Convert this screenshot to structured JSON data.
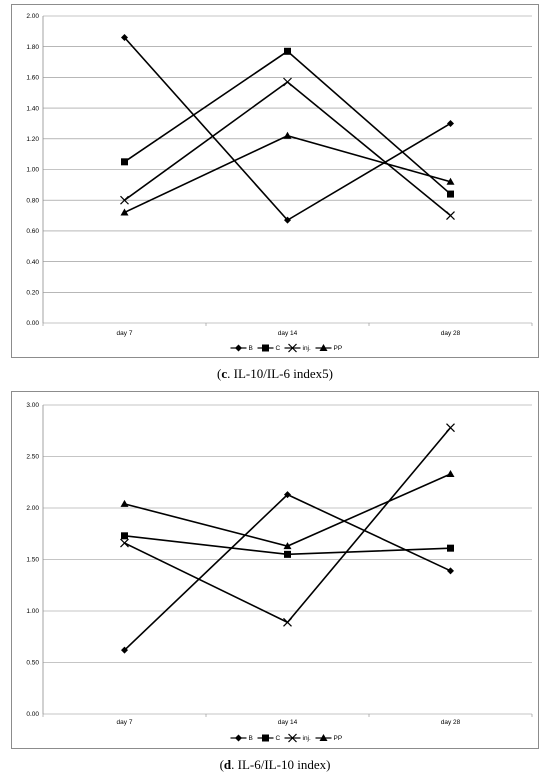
{
  "chart_data": [
    {
      "type": "line",
      "categories": [
        "day 7",
        "day 14",
        "day 28"
      ],
      "ylim": [
        0,
        2.0
      ],
      "ytick_labels": [
        "0.00",
        "0.20",
        "0.40",
        "0.60",
        "0.80",
        "1.00",
        "1.20",
        "1.40",
        "1.60",
        "1.80",
        "2.00"
      ],
      "grid": true,
      "legend_position": "bottom",
      "series": [
        {
          "name": "B",
          "marker": "diamond",
          "values": [
            1.86,
            0.67,
            1.3
          ]
        },
        {
          "name": "C",
          "marker": "square",
          "values": [
            1.05,
            1.77,
            0.84
          ]
        },
        {
          "name": "inj.",
          "marker": "x",
          "values": [
            0.8,
            1.57,
            0.7
          ]
        },
        {
          "name": "PP",
          "marker": "triangle",
          "values": [
            0.72,
            1.22,
            0.92
          ]
        }
      ]
    },
    {
      "type": "line",
      "categories": [
        "day 7",
        "day 14",
        "day 28"
      ],
      "ylim": [
        0,
        3.0
      ],
      "ytick_labels": [
        "0.00",
        "0.50",
        "1.00",
        "1.50",
        "2.00",
        "2.50",
        "3.00"
      ],
      "grid": true,
      "legend_position": "bottom",
      "series": [
        {
          "name": "B",
          "marker": "diamond",
          "values": [
            0.62,
            2.13,
            1.39
          ]
        },
        {
          "name": "C",
          "marker": "square",
          "values": [
            1.73,
            1.55,
            1.61
          ]
        },
        {
          "name": "inj.",
          "marker": "x",
          "values": [
            1.66,
            0.89,
            2.78
          ]
        },
        {
          "name": "PP",
          "marker": "triangle",
          "values": [
            2.04,
            1.63,
            2.33
          ]
        }
      ]
    }
  ],
  "captions": [
    {
      "letter": "c",
      "text": ". IL-10/IL-6 index5"
    },
    {
      "letter": "d",
      "text": ". IL-6/IL-10 index"
    }
  ]
}
